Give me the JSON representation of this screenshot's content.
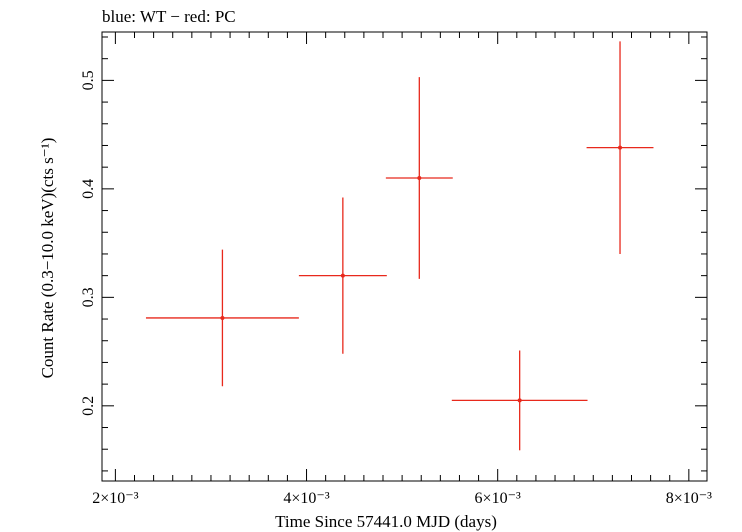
{
  "chart_data": {
    "type": "scatter",
    "title": "blue: WT − red: PC",
    "xlabel": "Time Since 57441.0 MJD (days)",
    "ylabel": "Count Rate (0.3−10.0 keV)(cts s⁻¹)",
    "xlim": [
      0.00186,
      0.00819
    ],
    "ylim": [
      0.1307,
      0.5446
    ],
    "x_ticks": [
      {
        "value": 0.002,
        "label": "2×10⁻³"
      },
      {
        "value": 0.004,
        "label": "4×10⁻³"
      },
      {
        "value": 0.006,
        "label": "6×10⁻³"
      },
      {
        "value": 0.008,
        "label": "8×10⁻³"
      }
    ],
    "y_ticks": [
      {
        "value": 0.2,
        "label": "0.2"
      },
      {
        "value": 0.3,
        "label": "0.3"
      },
      {
        "value": 0.4,
        "label": "0.4"
      },
      {
        "value": 0.5,
        "label": "0.5"
      }
    ],
    "series": [
      {
        "name": "PC",
        "color": "#e8291c",
        "points": [
          {
            "x": 0.00312,
            "y": 0.281,
            "xerr_low": 0.0008,
            "xerr_high": 0.0008,
            "yerr_low": 0.063,
            "yerr_high": 0.063
          },
          {
            "x": 0.00438,
            "y": 0.32,
            "xerr_low": 0.00046,
            "xerr_high": 0.00046,
            "yerr_low": 0.072,
            "yerr_high": 0.072
          },
          {
            "x": 0.00518,
            "y": 0.41,
            "xerr_low": 0.00035,
            "xerr_high": 0.00035,
            "yerr_low": 0.093,
            "yerr_high": 0.093
          },
          {
            "x": 0.00623,
            "y": 0.205,
            "xerr_low": 0.00071,
            "xerr_high": 0.00071,
            "yerr_low": 0.046,
            "yerr_high": 0.046
          },
          {
            "x": 0.00728,
            "y": 0.438,
            "xerr_low": 0.00035,
            "xerr_high": 0.00035,
            "yerr_low": 0.098,
            "yerr_high": 0.098
          }
        ]
      }
    ],
    "grid": false
  }
}
